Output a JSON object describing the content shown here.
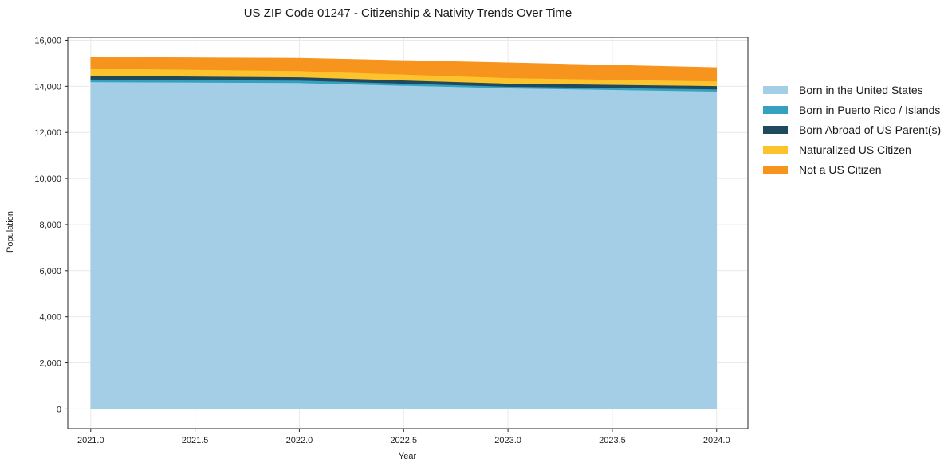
{
  "figure": {
    "background": "#ffffff"
  },
  "colors": {
    "grid": "#e9e9e9",
    "spine": "#262626",
    "text": "#1f1f1f"
  },
  "chart_data": {
    "type": "area",
    "stacked": true,
    "title": "US ZIP Code 01247 - Citizenship & Nativity Trends Over Time",
    "xlabel": "Year",
    "ylabel": "Population",
    "x": [
      2021,
      2022,
      2023,
      2024
    ],
    "series": [
      {
        "name": "Born in the United States",
        "color": "#a3cee5",
        "values": [
          14190,
          14150,
          13920,
          13780
        ]
      },
      {
        "name": "Born in Puerto Rico / Islands",
        "color": "#35a1c1",
        "values": [
          105,
          105,
          70,
          95
        ]
      },
      {
        "name": "Born Abroad of US Parent(s)",
        "color": "#1f4a5e",
        "values": [
          170,
          145,
          135,
          145
        ]
      },
      {
        "name": "Naturalized US Citizen",
        "color": "#fcc32d",
        "values": [
          310,
          270,
          240,
          200
        ]
      },
      {
        "name": "Not a US Citizen",
        "color": "#f7941e",
        "values": [
          485,
          550,
          655,
          590
        ]
      }
    ],
    "totals": [
      15260,
      15220,
      15020,
      14810
    ],
    "xlim": [
      2020.89,
      2024.15
    ],
    "ylim": [
      -850,
      16120
    ],
    "xticks": {
      "values": [
        2021.0,
        2021.5,
        2022.0,
        2022.5,
        2023.0,
        2023.5,
        2024.0
      ],
      "labels": [
        "2021.0",
        "2021.5",
        "2022.0",
        "2022.5",
        "2023.0",
        "2023.5",
        "2024.0"
      ]
    },
    "yticks": {
      "values": [
        0,
        2000,
        4000,
        6000,
        8000,
        10000,
        12000,
        14000,
        16000
      ],
      "labels": [
        "0",
        "2,000",
        "4,000",
        "6,000",
        "8,000",
        "10,000",
        "12,000",
        "14,000",
        "16,000"
      ]
    },
    "grid": true,
    "legend_position": "right-outside"
  }
}
